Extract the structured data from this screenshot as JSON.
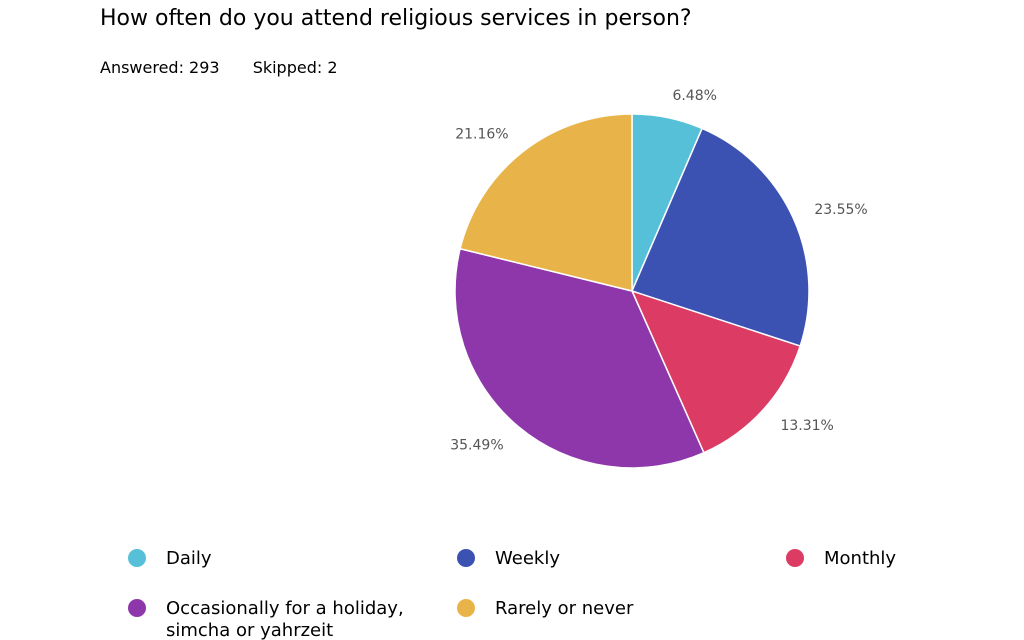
{
  "question": {
    "title": "How often do you attend religious services in person?",
    "answered": "Answered: 293",
    "skipped": "Skipped: 2"
  },
  "chart_data": {
    "type": "pie",
    "categories": [
      "Daily",
      "Weekly",
      "Monthly",
      "Occasionally for a holiday, simcha or yahrzeit",
      "Rarely or never"
    ],
    "values": [
      6.48,
      23.55,
      13.31,
      35.49,
      21.16
    ],
    "labels": [
      "6.48%",
      "23.55%",
      "13.31%",
      "35.49%",
      "21.16%"
    ],
    "colors": [
      "#56c0d8",
      "#3c52b2",
      "#dc3c64",
      "#8e37ab",
      "#e8b44a"
    ],
    "legend_position": "bottom"
  },
  "legend": {
    "items": [
      {
        "label": "Daily",
        "color": "#56c0d8"
      },
      {
        "label": "Weekly",
        "color": "#3c52b2"
      },
      {
        "label": "Monthly",
        "color": "#dc3c64"
      },
      {
        "label": "Occasionally for a holiday,\nsimcha or yahrzeit",
        "color": "#8e37ab"
      },
      {
        "label": "Rarely or never",
        "color": "#e8b44a"
      }
    ]
  }
}
